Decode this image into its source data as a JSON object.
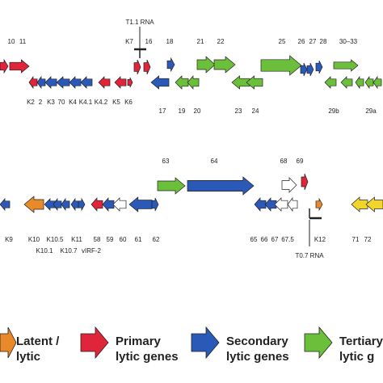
{
  "row1": {
    "labels_top": [
      "10",
      "11",
      "T1.1 RNA",
      "K7",
      "16",
      "18",
      "21",
      "22",
      "25",
      "26",
      "27",
      "28",
      "30–33"
    ],
    "labels_bottom": [
      "K2",
      "2",
      "K3",
      "70",
      "K4",
      "K4.1",
      "K4.2",
      "K5",
      "K6",
      "17",
      "19",
      "20",
      "23",
      "24",
      "29b",
      "29a"
    ]
  },
  "row2": {
    "labels_top": [
      "63",
      "64",
      "68",
      "69"
    ],
    "labels_bottom": [
      "K9",
      "K10",
      "K10.5",
      "K11",
      "58",
      "59",
      "60",
      "61",
      "62",
      "65",
      "66",
      "67",
      "67.5",
      "K12",
      "71",
      "72"
    ],
    "labels_bottom2": [
      "K10.1",
      "K10.7",
      "vIRF-2",
      "T0.7 RNA"
    ]
  },
  "legend": [
    {
      "line1": "Latent /",
      "line2": "lytic",
      "color": "#e8892a"
    },
    {
      "line1": "Primary",
      "line2": "lytic genes",
      "color": "#e0243a"
    },
    {
      "line1": "Secondary",
      "line2": "lytic genes",
      "color": "#2b59b8"
    },
    {
      "line1": "Tertiary",
      "line2": "lytic g",
      "color": "#6cbf3a"
    }
  ],
  "colors": {
    "orange": "#e8892a",
    "red": "#e0243a",
    "blue": "#2b59b8",
    "green": "#6cbf3a",
    "yellow": "#f2d52a",
    "white": "#ffffff"
  }
}
